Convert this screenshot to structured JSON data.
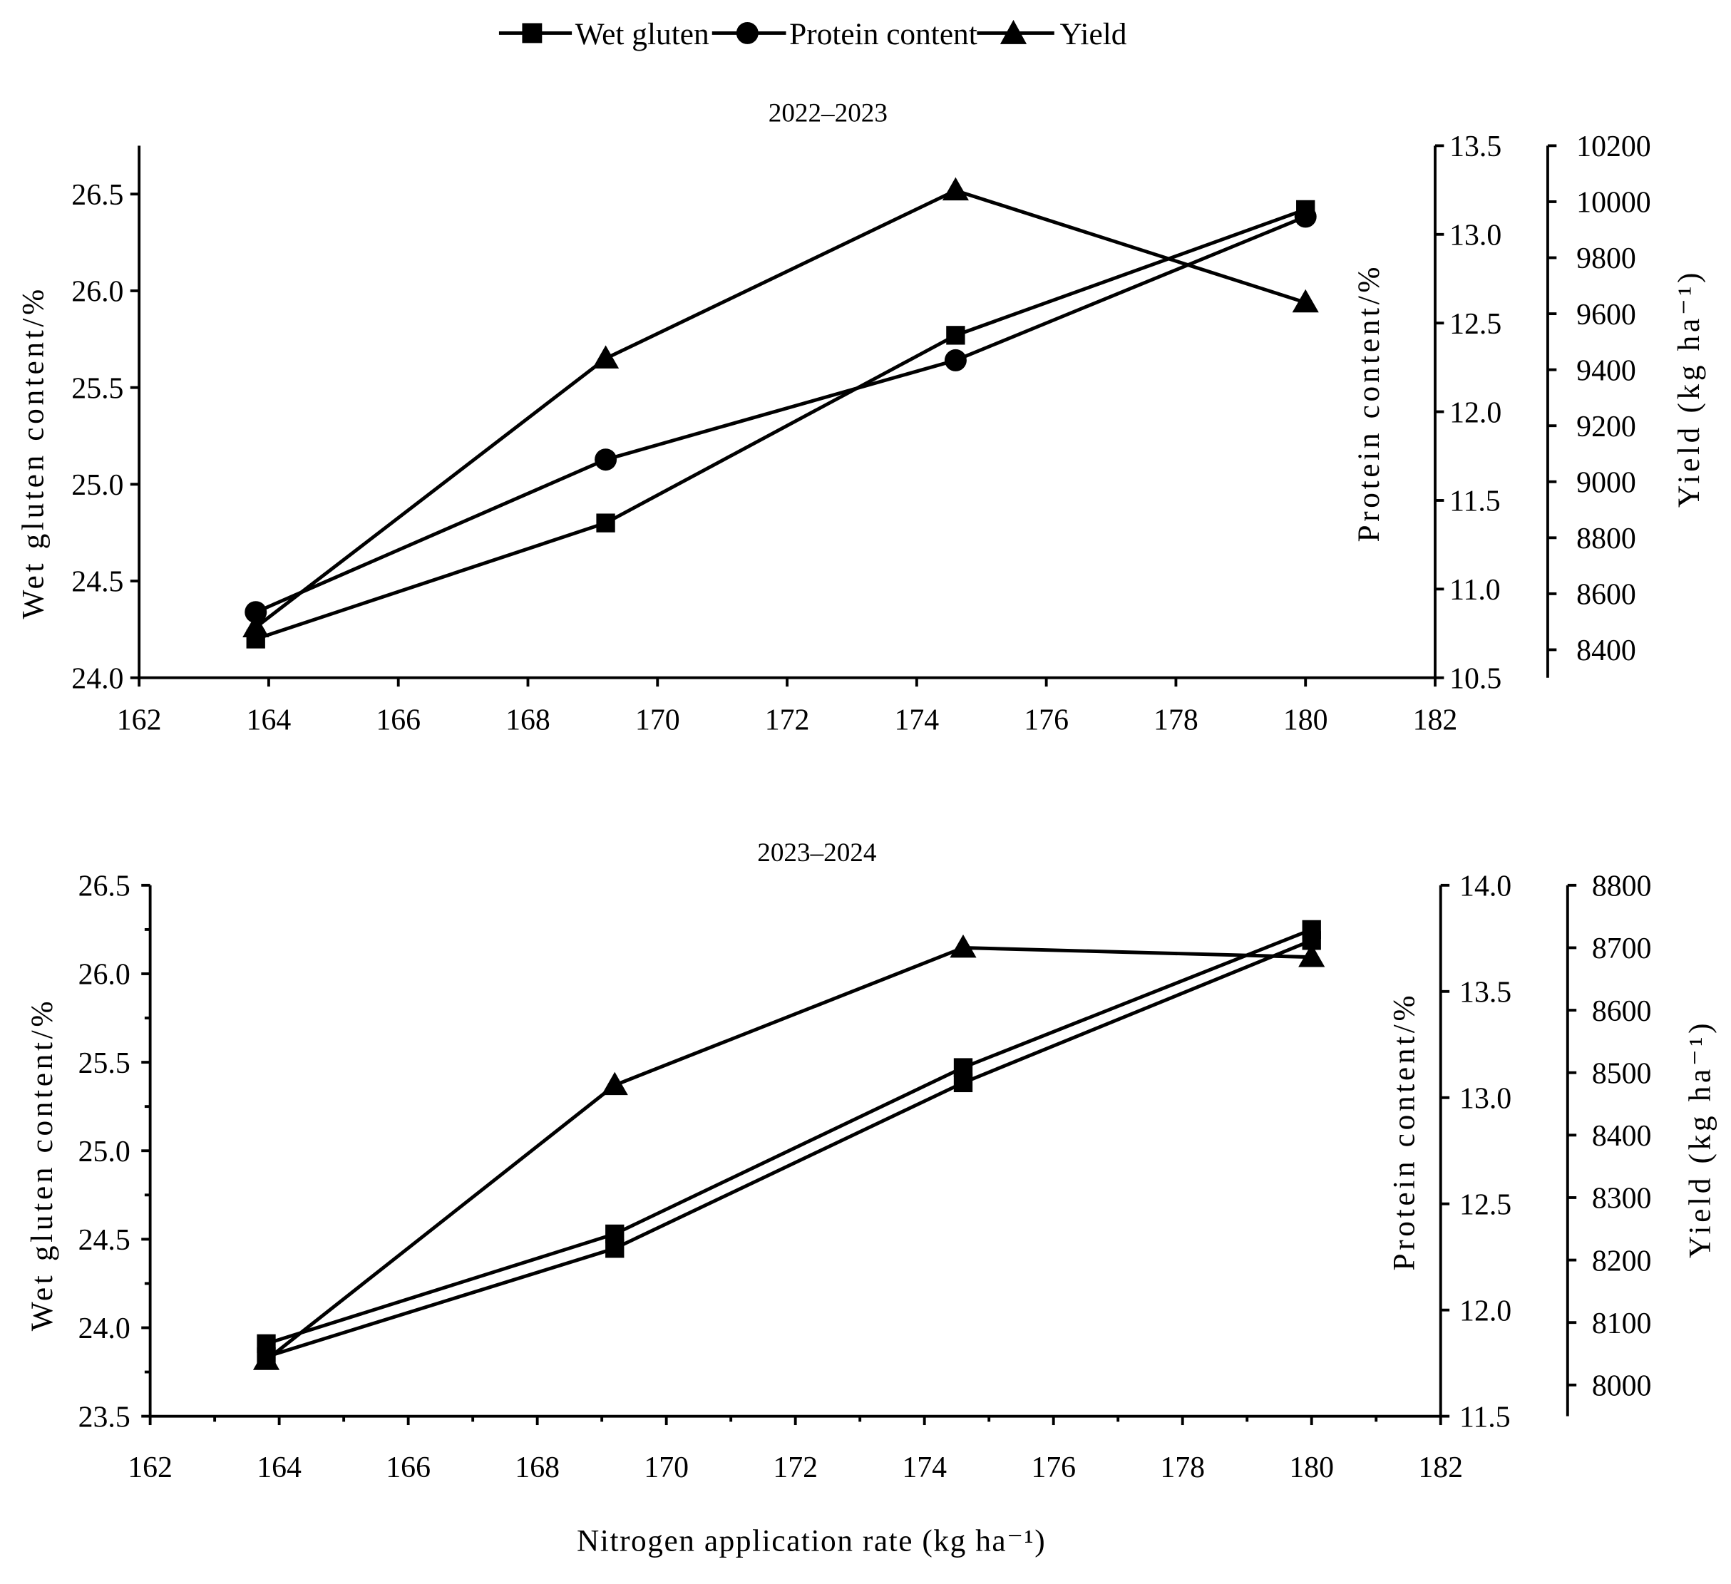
{
  "colors": {
    "ink": "#000000",
    "background": "#ffffff"
  },
  "chart_data": [
    {
      "type": "line",
      "title": "2022–2023",
      "xlabel": "",
      "x": [
        163.8,
        169.2,
        174.6,
        180
      ],
      "xlim": [
        162,
        182
      ],
      "x_ticks": [
        "162",
        "164",
        "166",
        "168",
        "170",
        "172",
        "174",
        "176",
        "178",
        "180",
        "182"
      ],
      "y_axes": [
        {
          "label": "Wet gluten content/%",
          "lim": [
            24.0,
            26.75
          ],
          "ticks": [
            "24.0",
            "24.5",
            "25.0",
            "25.5",
            "26.0",
            "26.5"
          ]
        },
        {
          "label": "Protein content/%",
          "lim": [
            10.5,
            13.5
          ],
          "ticks": [
            "10.5",
            "11.0",
            "11.5",
            "12.0",
            "12.5",
            "13.0",
            "13.5"
          ]
        },
        {
          "label": "Yield (kg ha⁻¹)",
          "lim": [
            8300,
            10200
          ],
          "ticks": [
            "8400",
            "8600",
            "8800",
            "9000",
            "9200",
            "9400",
            "9600",
            "9800",
            "10000",
            "10200"
          ]
        }
      ],
      "series": [
        {
          "name": "Wet gluten",
          "y_axis": 0,
          "marker": "square",
          "values": [
            24.2,
            24.8,
            25.77,
            26.42
          ]
        },
        {
          "name": "Protein content",
          "y_axis": 1,
          "marker": "circle",
          "values": [
            10.87,
            11.73,
            12.29,
            13.1
          ]
        },
        {
          "name": "Yield",
          "y_axis": 2,
          "marker": "triangle",
          "values": [
            8480,
            9440,
            10040,
            9640
          ]
        }
      ]
    },
    {
      "type": "line",
      "title": "2023–2024",
      "xlabel": "Nitrogen application rate (kg ha⁻¹)",
      "x": [
        163.8,
        169.2,
        174.6,
        180
      ],
      "xlim": [
        162,
        182
      ],
      "x_ticks": [
        "162",
        "164",
        "166",
        "168",
        "170",
        "172",
        "174",
        "176",
        "178",
        "180",
        "182"
      ],
      "y_axes": [
        {
          "label": "Wet gluten content/%",
          "lim": [
            23.5,
            26.5
          ],
          "ticks": [
            "23.5",
            "24.0",
            "24.5",
            "25.0",
            "25.5",
            "26.0",
            "26.5"
          ]
        },
        {
          "label": "Protein content/%",
          "lim": [
            11.5,
            14.0
          ],
          "ticks": [
            "11.5",
            "12.0",
            "12.5",
            "13.0",
            "13.5",
            "14.0"
          ]
        },
        {
          "label": "Yield (kg ha⁻¹)",
          "lim": [
            7950,
            8800
          ],
          "ticks": [
            "8000",
            "8100",
            "8200",
            "8300",
            "8400",
            "8500",
            "8600",
            "8700",
            "8800"
          ]
        }
      ],
      "series": [
        {
          "name": "Wet gluten",
          "y_axis": 0,
          "marker": "square",
          "values": [
            23.91,
            24.53,
            25.47,
            26.25
          ]
        },
        {
          "name": "Protein content",
          "y_axis": 1,
          "marker": "square",
          "values": [
            11.78,
            12.29,
            13.07,
            13.74
          ]
        },
        {
          "name": "Yield",
          "y_axis": 2,
          "marker": "triangle",
          "values": [
            8040,
            8480,
            8700,
            8685
          ]
        }
      ]
    }
  ]
}
